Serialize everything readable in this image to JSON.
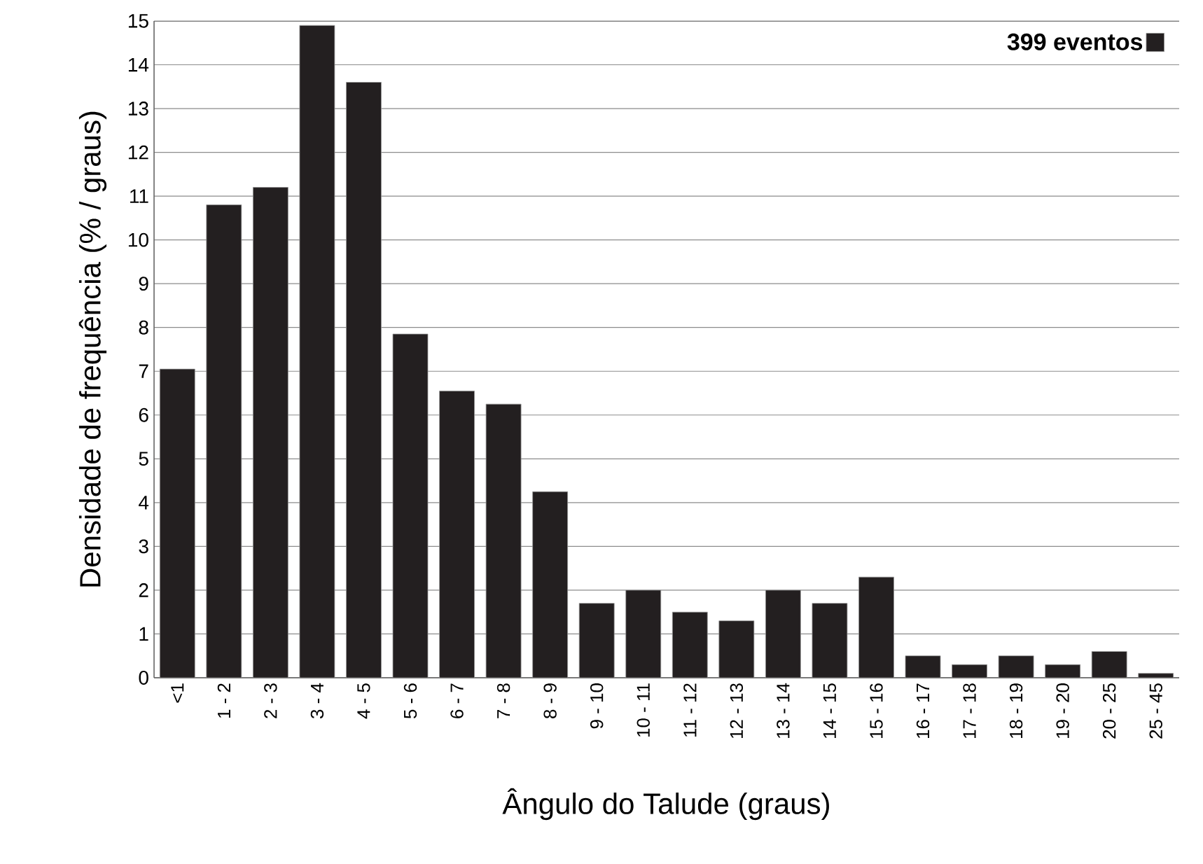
{
  "chart_data": {
    "type": "bar",
    "xlabel": "Ângulo do Talude (graus)",
    "ylabel": "Densidade de frequência (% / graus)",
    "categories": [
      "<1",
      "1 - 2",
      "2 - 3",
      "3 - 4",
      "4 - 5",
      "5 - 6",
      "6 - 7",
      "7 - 8",
      "8 - 9",
      "9 - 10",
      "10 - 11",
      "11 - 12",
      "12 - 13",
      "13 - 14",
      "14 - 15",
      "15 - 16",
      "16 - 17",
      "17 - 18",
      "18 - 19",
      "19 - 20",
      "20 - 25",
      "25 - 45"
    ],
    "series": [
      {
        "name": "399 eventos",
        "color": "#231f20",
        "values": [
          7.05,
          10.8,
          11.2,
          14.9,
          13.6,
          7.85,
          6.55,
          6.25,
          4.25,
          1.7,
          2.0,
          1.5,
          1.3,
          2.0,
          1.7,
          2.3,
          0.5,
          0.3,
          0.5,
          0.3,
          0.6,
          0.1
        ]
      }
    ],
    "ylim": [
      0,
      15
    ],
    "yticks": [
      0,
      1,
      2,
      3,
      4,
      5,
      6,
      7,
      8,
      9,
      10,
      11,
      12,
      13,
      14,
      15
    ],
    "grid": "y",
    "legend": "top right"
  }
}
